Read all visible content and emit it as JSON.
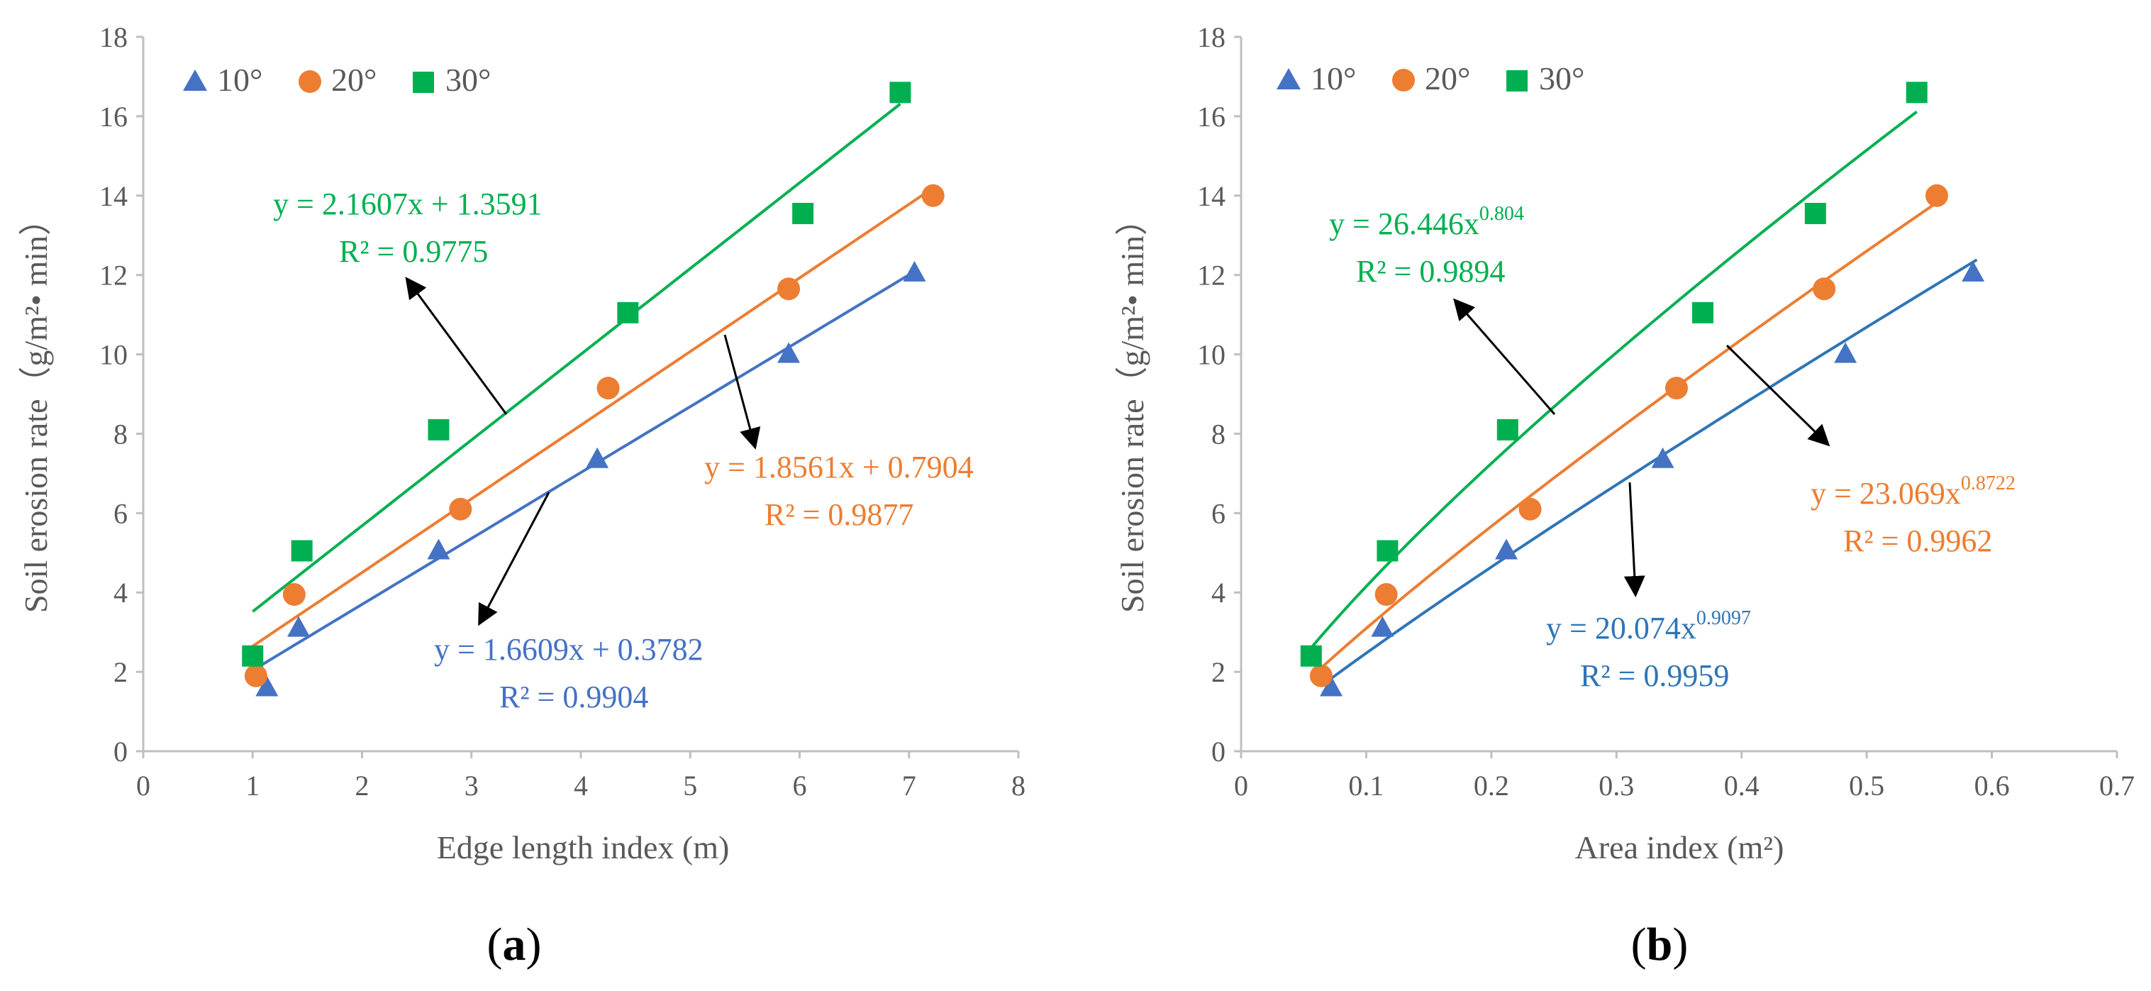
{
  "colors": {
    "s10": "#4472C4",
    "s20": "#ED7D31",
    "s30": "#00B050",
    "s10_fit_b": "#2E75B6",
    "axis": "#BFBFBF",
    "text": "#595959",
    "arrow": "#000000"
  },
  "legend": {
    "s10": "10°",
    "s20": "20°",
    "s30": "30°"
  },
  "chart_data": [
    {
      "panel": "a",
      "type": "scatter",
      "xlabel": "Edge length index (m)",
      "ylabel": "Soil erosion rate（g/m²• min）",
      "xlim": [
        0,
        8
      ],
      "ylim": [
        0,
        18
      ],
      "xticks": [
        0,
        1,
        2,
        3,
        4,
        5,
        6,
        7,
        8
      ],
      "yticks": [
        0,
        2,
        4,
        6,
        8,
        10,
        12,
        14,
        16,
        18
      ],
      "grid": false,
      "legend_position": "top-left",
      "series": [
        {
          "name": "10°",
          "marker": "triangle",
          "x": [
            1.13,
            1.42,
            2.7,
            4.15,
            5.9,
            7.05
          ],
          "y": [
            1.6,
            3.1,
            5.05,
            7.35,
            10.0,
            12.05
          ],
          "fit": {
            "type": "linear",
            "a": 1.6609,
            "b": 0.3782,
            "x_range": [
              1.0,
              7.05
            ]
          },
          "equation": "y = 1.6609x + 0.3782",
          "r2": "R² = 0.9904"
        },
        {
          "name": "20°",
          "marker": "circle",
          "x": [
            1.03,
            1.38,
            2.9,
            4.25,
            5.9,
            7.22
          ],
          "y": [
            1.9,
            3.95,
            6.1,
            9.15,
            11.65,
            14.0
          ],
          "fit": {
            "type": "linear",
            "a": 1.8561,
            "b": 0.7904,
            "x_range": [
              1.0,
              7.22
            ]
          },
          "equation": "y = 1.8561x + 0.7904",
          "r2": "R² = 0.9877"
        },
        {
          "name": "30°",
          "marker": "square",
          "x": [
            1.0,
            1.45,
            2.7,
            4.43,
            6.03,
            6.92
          ],
          "y": [
            2.4,
            5.05,
            8.1,
            11.05,
            13.55,
            16.6
          ],
          "fit": {
            "type": "linear",
            "a": 2.1607,
            "b": 1.3591,
            "x_range": [
              1.0,
              6.92
            ]
          },
          "equation": "y = 2.1607x + 1.3591",
          "r2": "R² = 0.9775"
        }
      ]
    },
    {
      "panel": "b",
      "type": "scatter",
      "xlabel": "Area index (m²)",
      "ylabel": "Soil erosion rate（g/m²• min）",
      "xlim": [
        0,
        0.7
      ],
      "ylim": [
        0,
        18
      ],
      "xticks": [
        0,
        0.1,
        0.2,
        0.3,
        0.4,
        0.5,
        0.6,
        0.7
      ],
      "yticks": [
        0,
        2,
        4,
        6,
        8,
        10,
        12,
        14,
        16,
        18
      ],
      "grid": false,
      "legend_position": "top-left",
      "series": [
        {
          "name": "10°",
          "marker": "triangle",
          "x": [
            0.072,
            0.113,
            0.212,
            0.337,
            0.483,
            0.585
          ],
          "y": [
            1.6,
            3.1,
            5.05,
            7.35,
            10.0,
            12.05
          ],
          "fit": {
            "type": "power",
            "a": 20.074,
            "b": 0.9097,
            "x_range": [
              0.065,
              0.588
            ]
          },
          "equation_base": "y = 20.074x",
          "equation_exp": "0.9097",
          "r2": "R² = 0.9959"
        },
        {
          "name": "20°",
          "marker": "circle",
          "x": [
            0.064,
            0.116,
            0.231,
            0.348,
            0.466,
            0.556
          ],
          "y": [
            1.9,
            3.95,
            6.1,
            9.15,
            11.65,
            14.0
          ],
          "fit": {
            "type": "power",
            "a": 23.069,
            "b": 0.8722,
            "x_range": [
              0.06,
              0.556
            ]
          },
          "equation_base": "y = 23.069x",
          "equation_exp": "0.8722",
          "r2": "R² = 0.9962"
        },
        {
          "name": "30°",
          "marker": "square",
          "x": [
            0.056,
            0.117,
            0.213,
            0.369,
            0.459,
            0.54
          ],
          "y": [
            2.4,
            5.05,
            8.1,
            11.05,
            13.55,
            16.6
          ],
          "fit": {
            "type": "power",
            "a": 26.446,
            "b": 0.804,
            "x_range": [
              0.056,
              0.54
            ]
          },
          "equation_base": "y = 26.446x",
          "equation_exp": "0.804",
          "r2": "R² = 0.9894"
        }
      ]
    }
  ],
  "panel_labels": [
    {
      "open": "(",
      "letter": "a",
      "close": ")"
    },
    {
      "open": "(",
      "letter": "b",
      "close": ")"
    }
  ]
}
